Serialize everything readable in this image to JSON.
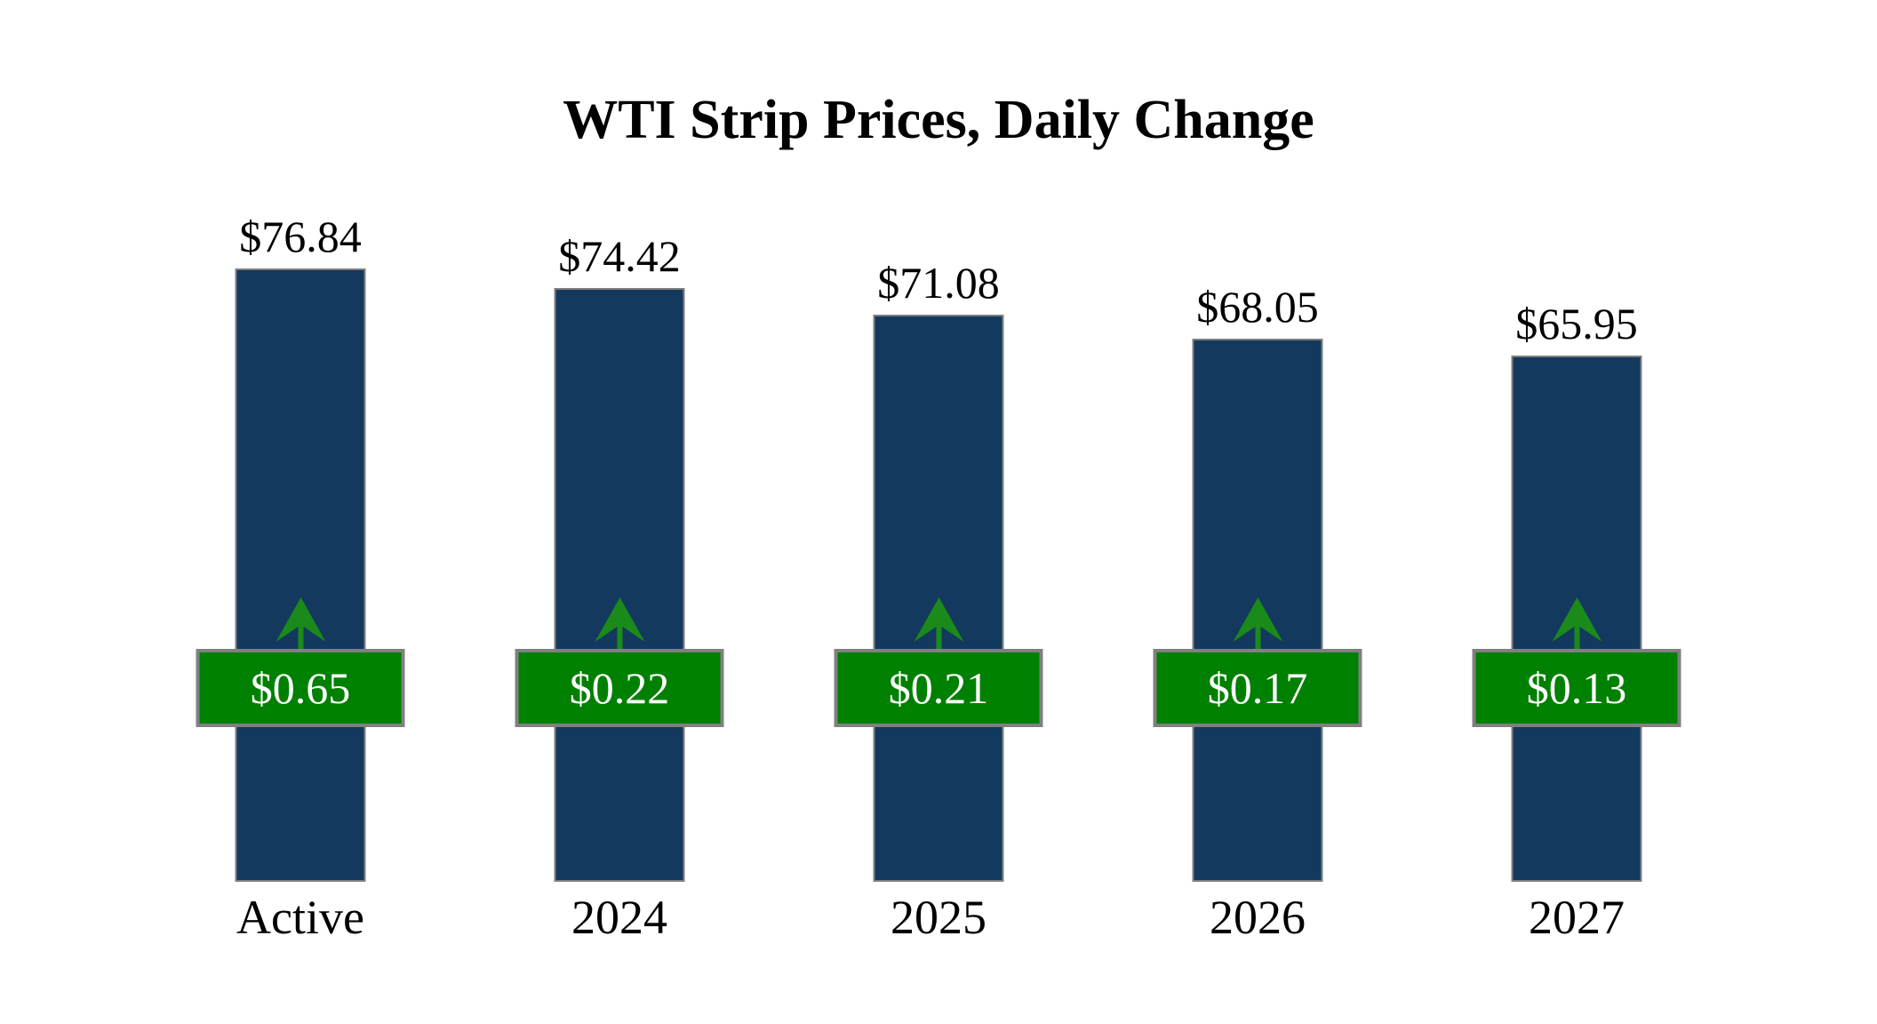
{
  "title": "WTI Strip Prices, Daily Change",
  "colors": {
    "background": "#FFFFFF",
    "text": "#000000",
    "bar": "#13395E",
    "bar_border": "#7F7F7F",
    "badge": "#008000",
    "badge_border": "#808080",
    "badge_text": "#FFFFFF",
    "arrow": "#1A8A1A"
  },
  "chart_data": {
    "type": "bar",
    "title": "WTI Strip Prices, Daily Change",
    "categories": [
      "Active",
      "2024",
      "2025",
      "2026",
      "2027"
    ],
    "series": [
      {
        "name": "Strip Price",
        "values": [
          76.84,
          74.42,
          71.08,
          68.05,
          65.95
        ]
      },
      {
        "name": "Daily Change",
        "values": [
          0.65,
          0.22,
          0.21,
          0.17,
          0.13
        ]
      }
    ],
    "ylim": [
      0,
      76.84
    ],
    "grid": false,
    "legend": false,
    "axis_labels_visible": false,
    "bars": [
      {
        "category": "Active",
        "price": 76.84,
        "price_label": "$76.84",
        "change": 0.65,
        "change_label": "$0.65",
        "direction": "up"
      },
      {
        "category": "2024",
        "price": 74.42,
        "price_label": "$74.42",
        "change": 0.22,
        "change_label": "$0.22",
        "direction": "up"
      },
      {
        "category": "2025",
        "price": 71.08,
        "price_label": "$71.08",
        "change": 0.21,
        "change_label": "$0.21",
        "direction": "up"
      },
      {
        "category": "2026",
        "price": 68.05,
        "price_label": "$68.05",
        "change": 0.17,
        "change_label": "$0.17",
        "direction": "up"
      },
      {
        "category": "2027",
        "price": 65.95,
        "price_label": "$65.95",
        "change": 0.13,
        "change_label": "$0.13",
        "direction": "up"
      }
    ]
  }
}
